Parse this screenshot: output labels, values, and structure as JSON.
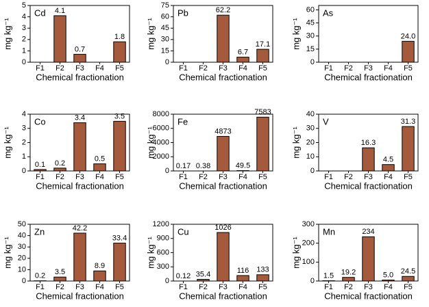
{
  "chart_data": [
    {
      "type": "bar",
      "title": "Cd",
      "x_label": "Chemical fractionation",
      "y_label": "mg kg⁻¹",
      "color": "#a65a3c",
      "categories": [
        "F1",
        "F2",
        "F3",
        "F4",
        "F5"
      ],
      "values": [
        null,
        4.1,
        0.7,
        null,
        1.8
      ],
      "value_labels": [
        null,
        "4.1",
        "0.7",
        null,
        "1.8"
      ],
      "ylim": [
        0,
        5
      ],
      "yticks": [
        0,
        1,
        2,
        3,
        4,
        5
      ]
    },
    {
      "type": "bar",
      "title": "Pb",
      "x_label": "Chemical fractionation",
      "y_label": "mg kg⁻¹",
      "color": "#a65a3c",
      "categories": [
        "F1",
        "F2",
        "F3",
        "F4",
        "F5"
      ],
      "values": [
        null,
        null,
        62.2,
        6.7,
        17.1
      ],
      "value_labels": [
        null,
        null,
        "62.2",
        "6.7",
        "17.1"
      ],
      "ylim": [
        0,
        75
      ],
      "yticks": [
        0,
        15,
        30,
        45,
        60,
        75
      ]
    },
    {
      "type": "bar",
      "title": "As",
      "x_label": "Chemical fractionation",
      "y_label": "mg kg⁻¹",
      "color": "#a65a3c",
      "categories": [
        "F1",
        "F2",
        "F3",
        "F4",
        "F5"
      ],
      "values": [
        null,
        null,
        null,
        null,
        24.0
      ],
      "value_labels": [
        null,
        null,
        null,
        null,
        "24.0"
      ],
      "ylim": [
        0,
        65
      ],
      "yticks": [
        0,
        15,
        30,
        45,
        60
      ]
    },
    {
      "type": "bar",
      "title": "Co",
      "x_label": "Chemical fractionation",
      "y_label": "mg kg⁻¹",
      "color": "#a65a3c",
      "categories": [
        "F1",
        "F2",
        "F3",
        "F4",
        "F5"
      ],
      "values": [
        0.1,
        0.2,
        3.4,
        0.5,
        3.5
      ],
      "value_labels": [
        "0.1",
        "0.2",
        "3.4",
        "0.5",
        "3.5"
      ],
      "ylim": [
        0,
        4
      ],
      "yticks": [
        0,
        1,
        2,
        3,
        4
      ]
    },
    {
      "type": "bar",
      "title": "Fe",
      "x_label": "Chemical fractionation",
      "y_label": "mg kg⁻¹",
      "color": "#a65a3c",
      "categories": [
        "F1",
        "F2",
        "F3",
        "F4",
        "F5"
      ],
      "values": [
        0.17,
        0.38,
        4873,
        49.5,
        7583
      ],
      "value_labels": [
        "0.17",
        "0.38",
        "4873",
        "49.5",
        "7583"
      ],
      "ylim": [
        0,
        8000
      ],
      "yticks": [
        0,
        2000,
        4000,
        6000,
        8000
      ]
    },
    {
      "type": "bar",
      "title": "V",
      "x_label": "Chemical fractionation",
      "y_label": "mg kg⁻¹",
      "color": "#a65a3c",
      "categories": [
        "F1",
        "F2",
        "F3",
        "F4",
        "F5"
      ],
      "values": [
        null,
        null,
        16.3,
        4.5,
        31.3
      ],
      "value_labels": [
        null,
        null,
        "16.3",
        "4.5",
        "31.3"
      ],
      "ylim": [
        0,
        40
      ],
      "yticks": [
        0,
        10,
        20,
        30,
        40
      ]
    },
    {
      "type": "bar",
      "title": "Zn",
      "x_label": "Chemical fractionation",
      "y_label": "mg kg⁻¹",
      "color": "#a65a3c",
      "categories": [
        "F1",
        "F2",
        "F3",
        "F4",
        "F5"
      ],
      "values": [
        0.2,
        3.5,
        42.2,
        8.9,
        33.4
      ],
      "value_labels": [
        "0.2",
        "3.5",
        "42.2",
        "8.9",
        "33.4"
      ],
      "ylim": [
        0,
        50
      ],
      "yticks": [
        0,
        10,
        20,
        30,
        40,
        50
      ]
    },
    {
      "type": "bar",
      "title": "Cu",
      "x_label": "Chemical fractionation",
      "y_label": "mg kg⁻¹",
      "color": "#a65a3c",
      "categories": [
        "F1",
        "F2",
        "F3",
        "F4",
        "F5"
      ],
      "values": [
        0.12,
        35.4,
        1026,
        116,
        133
      ],
      "value_labels": [
        "0.12",
        "35.4",
        "1026",
        "116",
        "133"
      ],
      "ylim": [
        0,
        1200
      ],
      "yticks": [
        0,
        300,
        600,
        900,
        1200
      ]
    },
    {
      "type": "bar",
      "title": "Mn",
      "x_label": "Chemical fractionation",
      "y_label": "mg kg⁻¹",
      "color": "#a65a3c",
      "categories": [
        "F1",
        "F2",
        "F3",
        "F4",
        "F5"
      ],
      "values": [
        1.5,
        19.2,
        234,
        5.0,
        24.5
      ],
      "value_labels": [
        "1.5",
        "19.2",
        "234",
        "5.0",
        "24.5"
      ],
      "ylim": [
        0,
        300
      ],
      "yticks": [
        0,
        100,
        200,
        300
      ]
    }
  ]
}
